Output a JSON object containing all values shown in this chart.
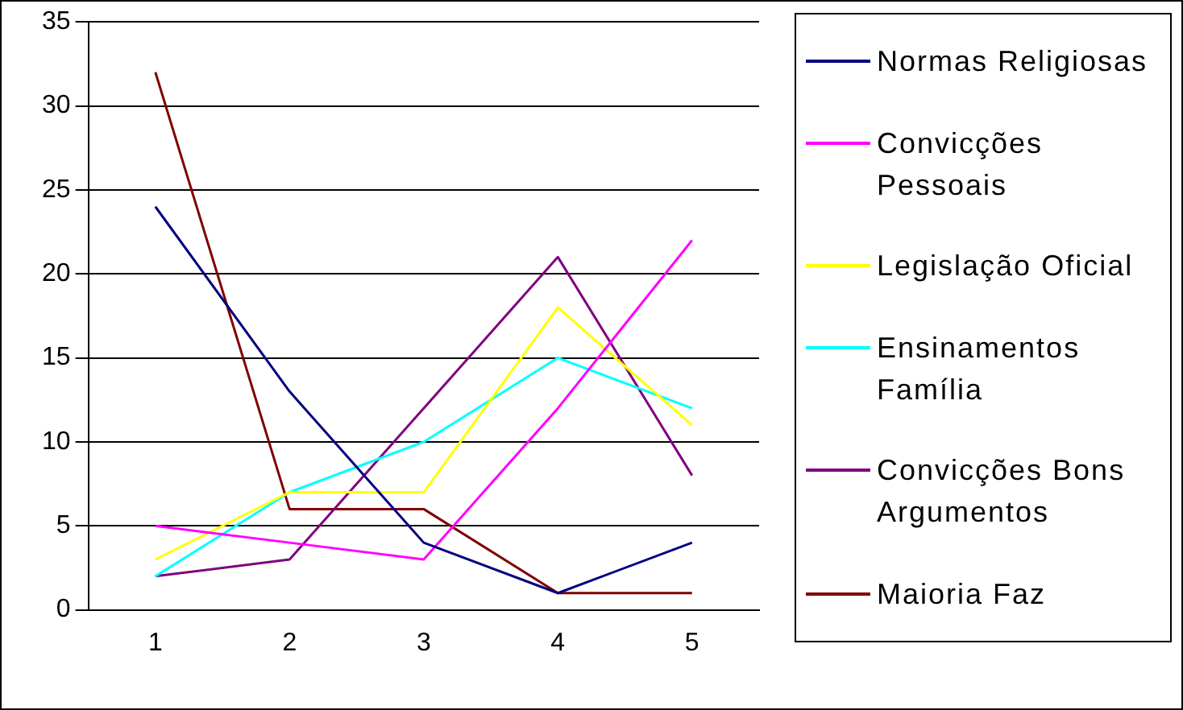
{
  "chart_data": {
    "type": "line",
    "categories": [
      "1",
      "2",
      "3",
      "4",
      "5"
    ],
    "ylim": [
      0,
      35
    ],
    "yticks": [
      0,
      5,
      10,
      15,
      20,
      25,
      30,
      35
    ],
    "grid": "y",
    "legend": "right",
    "marker": "none",
    "line_style": "solid",
    "series": [
      {
        "name": "Normas Religiosas",
        "color": "#000080",
        "values": [
          24,
          13,
          4,
          1,
          4
        ]
      },
      {
        "name": "Convicções Pessoais",
        "color": "#ff00ff",
        "values": [
          5,
          4,
          3,
          12,
          22
        ]
      },
      {
        "name": "Legislação Oficial",
        "color": "#ffff00",
        "values": [
          3,
          7,
          7,
          18,
          11
        ]
      },
      {
        "name": "Ensinamentos Família",
        "color": "#00ffff",
        "values": [
          2,
          7,
          10,
          15,
          12
        ]
      },
      {
        "name": "Convicções Bons Argumentos",
        "color": "#800080",
        "values": [
          2,
          3,
          12,
          21,
          8
        ]
      },
      {
        "name": "Maioria Faz",
        "color": "#800000",
        "values": [
          32,
          6,
          6,
          1,
          1
        ]
      }
    ]
  }
}
